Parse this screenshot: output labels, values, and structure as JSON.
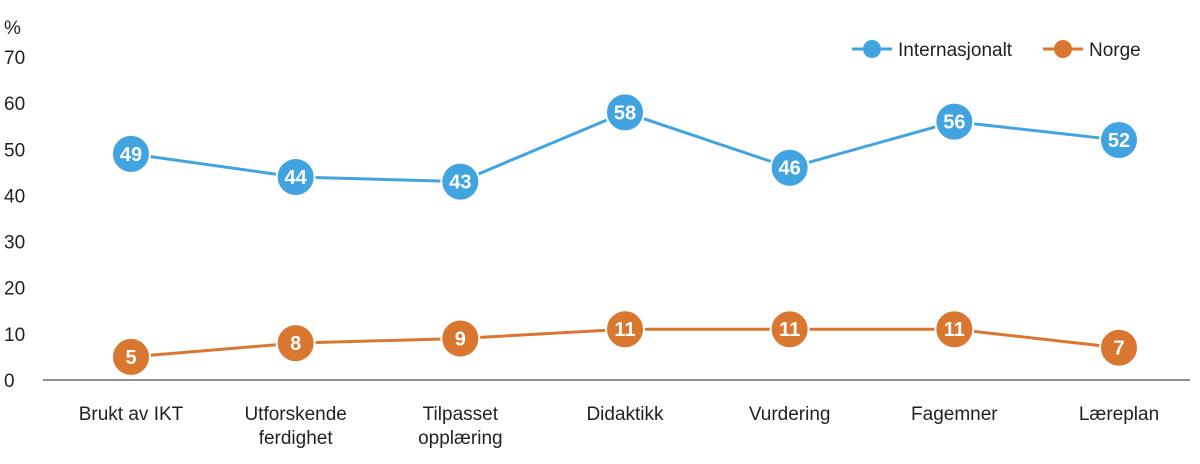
{
  "chart_data": {
    "type": "line",
    "ylabel": "%",
    "ylim": [
      0,
      70
    ],
    "yticks": [
      "0",
      "10",
      "20",
      "30",
      "40",
      "50",
      "60",
      "70"
    ],
    "categories": [
      [
        "Brukt av IKT"
      ],
      [
        "Utforskende",
        "ferdighet"
      ],
      [
        "Tilpasset",
        "opplæring"
      ],
      [
        "Didaktikk"
      ],
      [
        "Vurdering"
      ],
      [
        "Fagemner"
      ],
      [
        "Læreplan"
      ]
    ],
    "series": [
      {
        "name": "Internasjonalt",
        "color": "#41a4e1",
        "values": [
          49,
          44,
          43,
          58,
          46,
          56,
          52
        ]
      },
      {
        "name": "Norge",
        "color": "#d9762f",
        "values": [
          5,
          8,
          9,
          11,
          11,
          11,
          7
        ]
      }
    ],
    "grid": false,
    "legend": "top-right"
  }
}
